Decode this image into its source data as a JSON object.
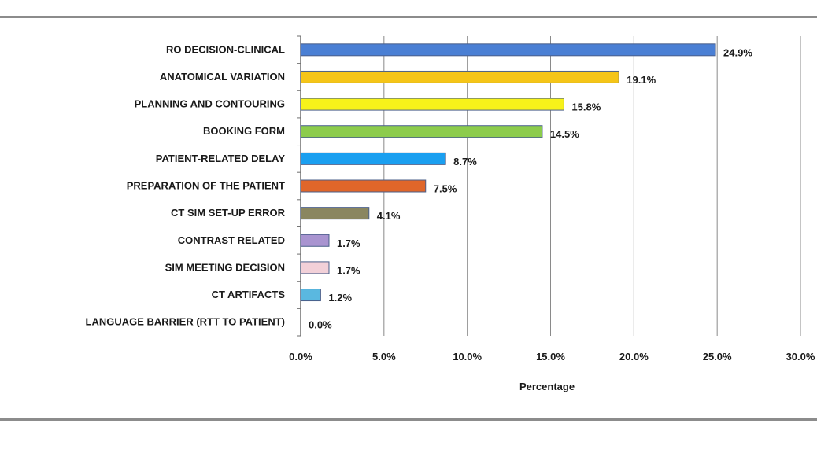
{
  "chart_data": {
    "type": "bar",
    "orientation": "horizontal",
    "title": "",
    "xlabel": "Percentage",
    "ylabel": "",
    "xlim": [
      0,
      30
    ],
    "x_ticks": [
      0,
      5,
      10,
      15,
      20,
      25,
      30
    ],
    "x_tick_labels": [
      "0.0%",
      "5.0%",
      "10.0%",
      "15.0%",
      "20.0%",
      "25.0%",
      "30.0%"
    ],
    "grid": "vertical",
    "legend": "none",
    "categories": [
      "RO DECISION-CLINICAL",
      "ANATOMICAL VARIATION",
      "PLANNING AND CONTOURING",
      "BOOKING FORM",
      "PATIENT-RELATED DELAY",
      "PREPARATION OF THE PATIENT",
      "CT SIM SET-UP ERROR",
      "CONTRAST RELATED",
      "SIM MEETING DECISION",
      "CT ARTIFACTS",
      "LANGUAGE BARRIER (RTT TO PATIENT)"
    ],
    "values": [
      24.9,
      19.1,
      15.8,
      14.5,
      8.7,
      7.5,
      4.1,
      1.7,
      1.7,
      1.2,
      0.0
    ],
    "data_labels": [
      "24.9%",
      "19.1%",
      "15.8%",
      "14.5%",
      "8.7%",
      "7.5%",
      "4.1%",
      "1.7%",
      "1.7%",
      "1.2%",
      "0.0%"
    ],
    "colors": [
      "#4a7fd4",
      "#f5c518",
      "#f7f21a",
      "#8ccc4c",
      "#1a9ff0",
      "#e0662a",
      "#8a8660",
      "#a994d0",
      "#f2d0d8",
      "#5ab8e0",
      "#bbbbbb"
    ]
  }
}
